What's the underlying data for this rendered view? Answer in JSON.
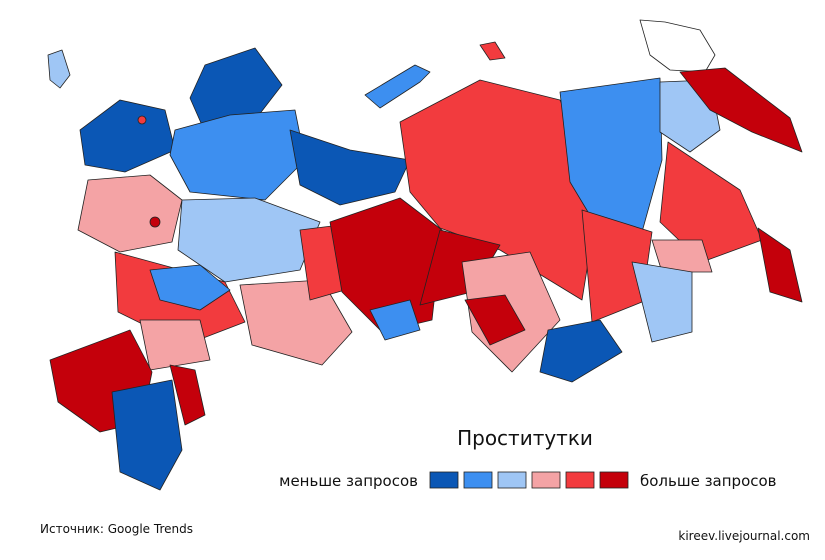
{
  "title": "Проститутки",
  "legend": {
    "low_label": "меньше запросов",
    "high_label": "больше запросов",
    "colors": [
      "#0b57b5",
      "#3d8ff0",
      "#9fc6f5",
      "#f4a3a5",
      "#f23b3e",
      "#c4000b"
    ]
  },
  "footer": {
    "source": "Источник: Google Trends",
    "site": "kireev.livejournal.com"
  }
}
